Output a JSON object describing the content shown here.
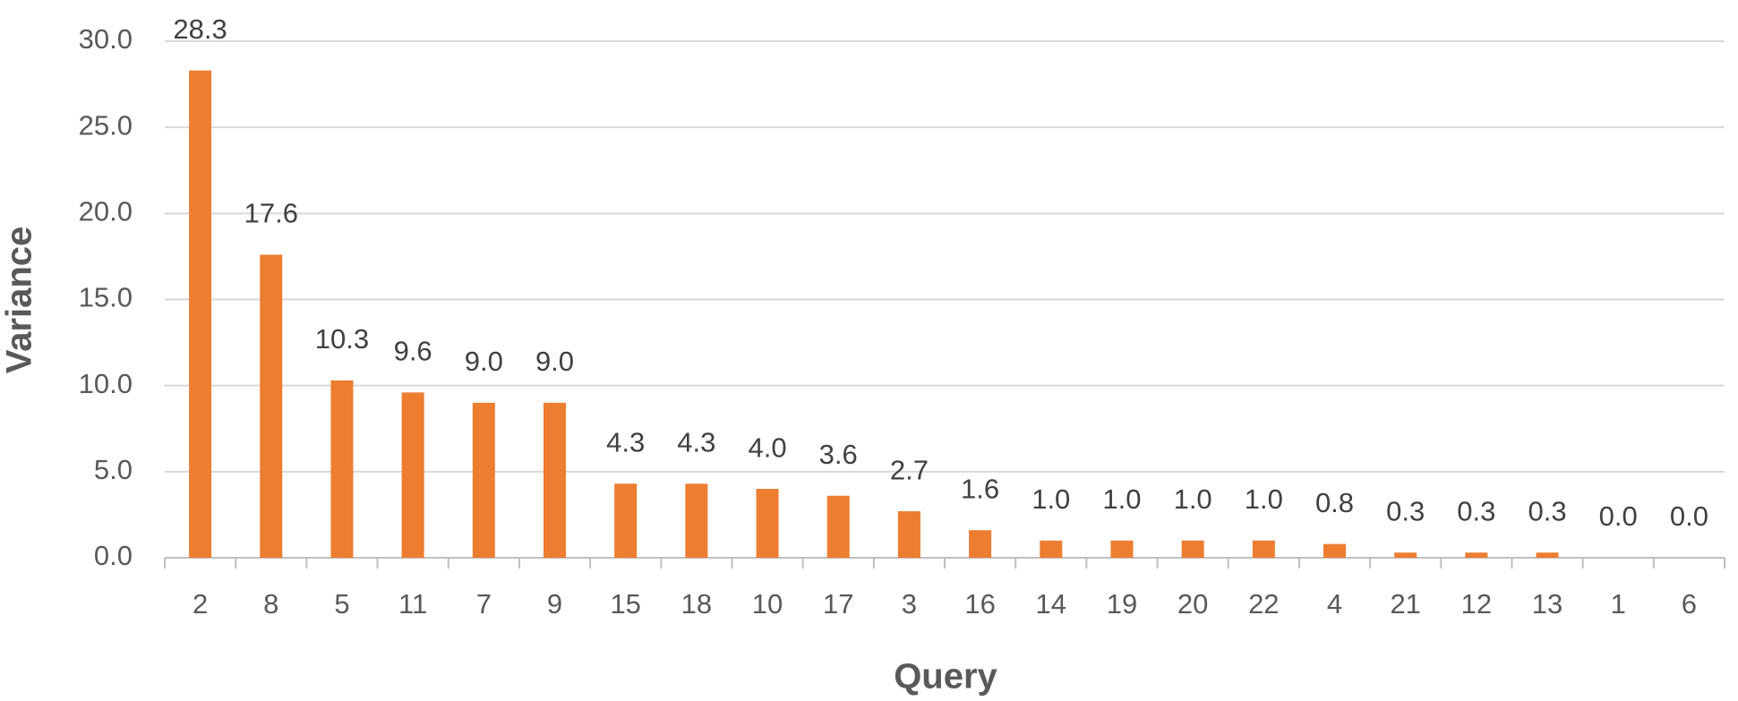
{
  "chart_data": {
    "type": "bar",
    "x_label": "Query",
    "y_label": "Variance",
    "categories": [
      "2",
      "8",
      "5",
      "11",
      "7",
      "9",
      "15",
      "18",
      "10",
      "17",
      "3",
      "16",
      "14",
      "19",
      "20",
      "22",
      "4",
      "21",
      "12",
      "13",
      "1",
      "6"
    ],
    "values": [
      28.3,
      17.6,
      10.3,
      9.6,
      9.0,
      9.0,
      4.3,
      4.3,
      4.0,
      3.6,
      2.7,
      1.6,
      1.0,
      1.0,
      1.0,
      1.0,
      0.8,
      0.3,
      0.3,
      0.3,
      0.0,
      0.0
    ],
    "value_labels": [
      "28.3",
      "17.6",
      "10.3",
      "9.6",
      "9.0",
      "9.0",
      "4.3",
      "4.3",
      "4.0",
      "3.6",
      "2.7",
      "1.6",
      "1.0",
      "1.0",
      "1.0",
      "1.0",
      "0.8",
      "0.3",
      "0.3",
      "0.3",
      "0.0",
      "0.0"
    ],
    "color": "#ed7d31",
    "ylim": [
      0,
      30
    ],
    "yticks": [
      {
        "value": 0,
        "label": "0.0"
      },
      {
        "value": 5,
        "label": "5.0"
      },
      {
        "value": 10,
        "label": "10.0"
      },
      {
        "value": 15,
        "label": "15.0"
      },
      {
        "value": 20,
        "label": "20.0"
      },
      {
        "value": 25,
        "label": "25.0"
      },
      {
        "value": 30,
        "label": "30.0"
      }
    ],
    "grid": true
  }
}
